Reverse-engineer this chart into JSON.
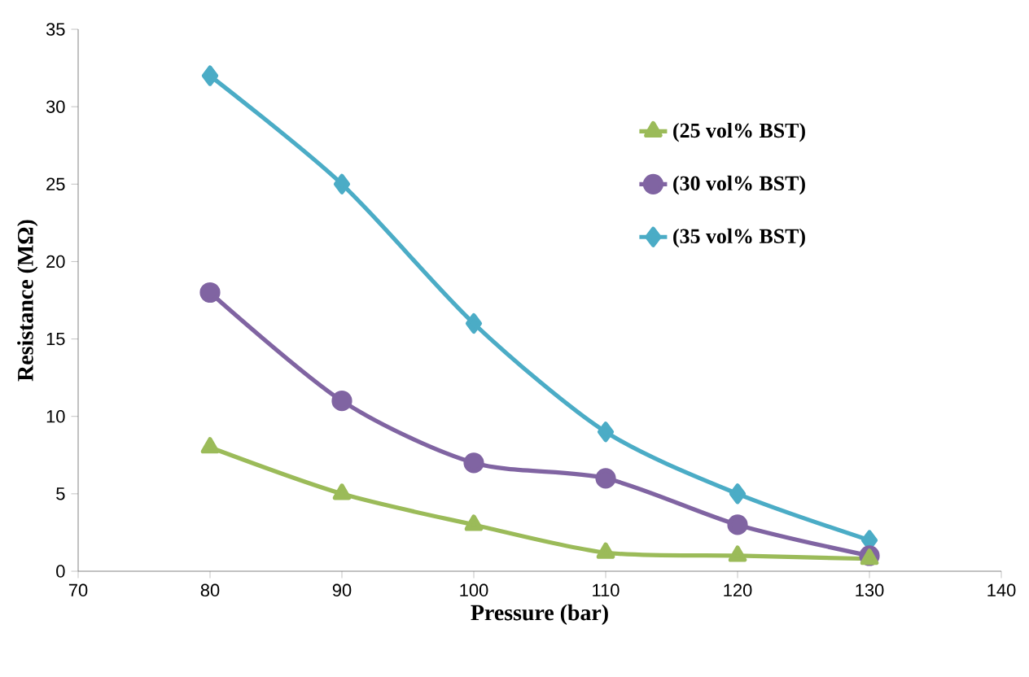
{
  "chart_data": {
    "type": "line",
    "xlabel": "Pressure (bar)",
    "ylabel": "Resistance (MΩ)",
    "x": [
      80,
      90,
      100,
      110,
      120,
      130
    ],
    "series": [
      {
        "name": "(25 vol% BST)",
        "color": "#9bbb59",
        "marker": "triangle",
        "values": [
          8,
          5,
          3,
          1.2,
          1,
          0.8
        ]
      },
      {
        "name": "(30 vol% BST)",
        "color": "#8064a2",
        "marker": "circle",
        "values": [
          18,
          11,
          7,
          6,
          3,
          1
        ]
      },
      {
        "name": "(35 vol% BST)",
        "color": "#4bacc6",
        "marker": "diamond",
        "values": [
          32,
          25,
          16,
          9,
          5,
          2
        ]
      }
    ],
    "xlim": [
      70,
      140
    ],
    "xticks": [
      70,
      80,
      90,
      100,
      110,
      120,
      130,
      140
    ],
    "ylim": [
      0,
      35
    ],
    "yticks": [
      0,
      5,
      10,
      15,
      20,
      25,
      30,
      35
    ],
    "grid": false,
    "legend": "top right",
    "line_style": "solid"
  }
}
